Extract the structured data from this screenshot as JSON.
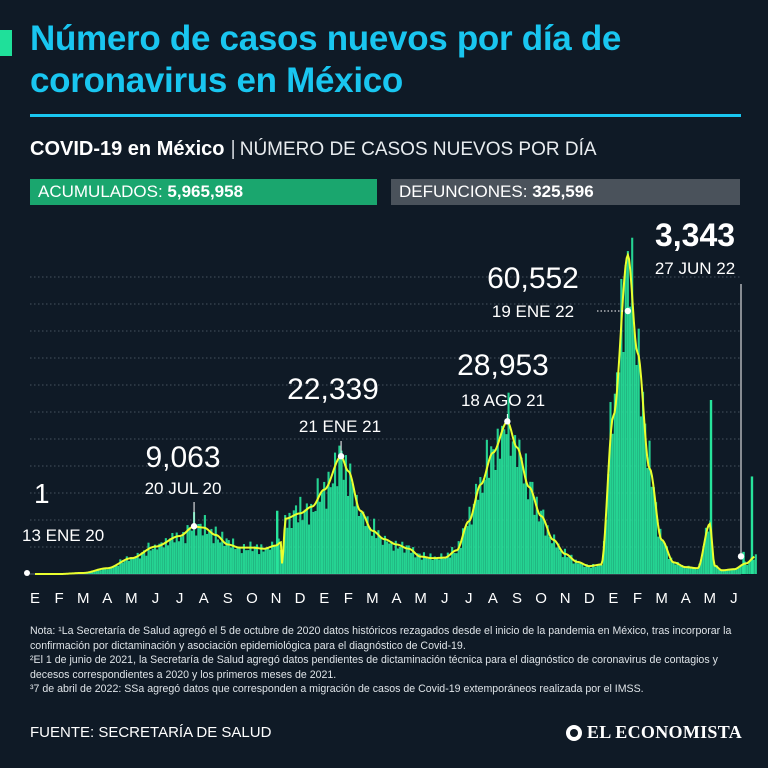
{
  "header": {
    "title": "Número de casos nuevos por día de coronavirus en México"
  },
  "subtitle": {
    "strong": "COVID-19 en México",
    "separator": "|",
    "description": "NÚMERO DE CASOS NUEVOS POR DÍA"
  },
  "stats": {
    "accumulated_label": "ACUMULADOS:",
    "accumulated_value": "5,965,958",
    "deaths_label": "DEFUNCIONES:",
    "deaths_value": "325,596"
  },
  "colors": {
    "title": "#19c6f0",
    "bars": "#27e39b",
    "line": "#eaff2e",
    "background": "#0f1a26",
    "accumulated_pill": "#1aa66e",
    "deaths_pill": "#4a525b"
  },
  "chart_data": {
    "type": "bar",
    "title": "",
    "xlabel": "",
    "ylabel": "",
    "ylim": [
      0,
      66000
    ],
    "grid": true,
    "x_tick_labels": [
      "E",
      "F",
      "M",
      "A",
      "M",
      "J",
      "J",
      "A",
      "S",
      "O",
      "N",
      "D",
      "E",
      "F",
      "M",
      "A",
      "M",
      "J",
      "J",
      "A",
      "S",
      "O",
      "N",
      "D",
      "E",
      "F",
      "M",
      "A",
      "M",
      "J"
    ],
    "annotations": [
      {
        "value": "1",
        "date": "13 ENE 20",
        "month_index": 0.4,
        "y": 1
      },
      {
        "value": "9,063",
        "date": "20 JUL 20",
        "month_index": 6.6,
        "y": 9063
      },
      {
        "value": "22,339",
        "date": "21 ENE 21",
        "month_index": 12.7,
        "y": 22339
      },
      {
        "value": "28,953",
        "date": "18 AGO 21",
        "month_index": 19.6,
        "y": 28953
      },
      {
        "value": "60,552",
        "date": "19 ENE 22",
        "month_index": 24.6,
        "y": 60552
      },
      {
        "value": "3,343",
        "date": "27 JUN 22",
        "month_index": 29.9,
        "y": 3343
      }
    ],
    "series": [
      {
        "type": "smoothed-line",
        "points": [
          [
            0,
            0
          ],
          [
            1,
            0
          ],
          [
            2,
            200
          ],
          [
            3,
            1100
          ],
          [
            4,
            3000
          ],
          [
            5,
            5200
          ],
          [
            6,
            7200
          ],
          [
            6.6,
            9000
          ],
          [
            7,
            8800
          ],
          [
            7.5,
            7400
          ],
          [
            8,
            5600
          ],
          [
            8.5,
            5000
          ],
          [
            9,
            5000
          ],
          [
            9.5,
            4800
          ],
          [
            10,
            5400
          ],
          [
            10.2,
            6000
          ],
          [
            10.25,
            2000
          ],
          [
            10.4,
            10500
          ],
          [
            11,
            11500
          ],
          [
            11.5,
            12800
          ],
          [
            12,
            16000
          ],
          [
            12.7,
            22300
          ],
          [
            13,
            19500
          ],
          [
            13.5,
            12000
          ],
          [
            14,
            8200
          ],
          [
            14.5,
            6600
          ],
          [
            15,
            5600
          ],
          [
            15.5,
            4800
          ],
          [
            16,
            3300
          ],
          [
            16.5,
            3000
          ],
          [
            17,
            3100
          ],
          [
            17.5,
            4500
          ],
          [
            18,
            10000
          ],
          [
            18.5,
            17000
          ],
          [
            19,
            23000
          ],
          [
            19.6,
            28900
          ],
          [
            20,
            24000
          ],
          [
            20.5,
            16500
          ],
          [
            21,
            11000
          ],
          [
            21.5,
            6500
          ],
          [
            22,
            3800
          ],
          [
            22.5,
            2300
          ],
          [
            23,
            1500
          ],
          [
            23.5,
            1800
          ],
          [
            24,
            30000
          ],
          [
            24.6,
            60500
          ],
          [
            25,
            42000
          ],
          [
            25.5,
            20000
          ],
          [
            26,
            6500
          ],
          [
            26.5,
            2200
          ],
          [
            27,
            1300
          ],
          [
            27.5,
            1100
          ],
          [
            28,
            9500
          ],
          [
            28.2,
            1600
          ],
          [
            28.5,
            700
          ],
          [
            29,
            900
          ],
          [
            29.5,
            2000
          ],
          [
            29.9,
            3343
          ]
        ]
      }
    ],
    "spikes": [
      [
        10.05,
        12000
      ],
      [
        28.05,
        33000
      ],
      [
        29.4,
        4200
      ],
      [
        29.75,
        18500
      ]
    ]
  },
  "notes": [
    "Nota: ¹La Secretaría de Salud agregó el 5 de octubre de 2020 datos históricos rezagados desde el inicio de la pandemia en México, tras incorporar la confirmación por dictaminación y asociación epidemiológica para el diagnóstico de Covid-19.",
    "²El 1 de junio de 2021, la Secretaría de Salud agregó datos pendientes de dictaminación técnica para el diagnóstico de coronavirus de contagios y decesos correspondientes a 2020 y los primeros meses de 2021.",
    "³7 de abril de 2022: SSa agregó datos que corresponden a migración de casos de Covid-19 extemporáneos realizada por el IMSS."
  ],
  "footer": {
    "source": "FUENTE: SECRETARÍA DE SALUD",
    "brand": "EL ECONOMISTA"
  }
}
